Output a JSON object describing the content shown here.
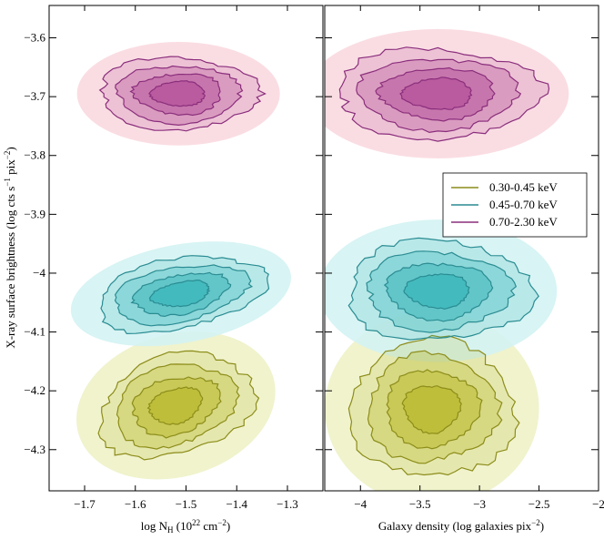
{
  "chart_data": [
    {
      "type": "contour",
      "panel": "left",
      "xlabel": "log N",
      "xlabel_sub": "H",
      "xlabel_units": "(10",
      "xlabel_units_exp": "22",
      "xlabel_units_tail": " cm",
      "xlabel_units_exp2": "−2",
      "xlabel_units_close": ")",
      "ylabel": "X-ray surface brightness (log cts s",
      "ylabel_exp1": "−1",
      "ylabel_mid": " pix",
      "ylabel_exp2": "−2",
      "ylabel_close": ")",
      "xlim": [
        -1.77,
        -1.23
      ],
      "ylim": [
        -4.37,
        -3.545
      ],
      "xticks": [
        -1.7,
        -1.6,
        -1.5,
        -1.4,
        -1.3
      ],
      "xtick_labels": [
        "−1.7",
        "−1.6",
        "−1.5",
        "−1.4",
        "−1.3"
      ],
      "yticks": [
        -3.6,
        -3.7,
        -3.8,
        -3.9,
        -4.0,
        -4.1,
        -4.2,
        -4.3
      ],
      "ytick_labels": [
        "−3.6",
        "−3.7",
        "−3.8",
        "−3.9",
        "−4",
        "−4.1",
        "−4.2",
        "−4.3"
      ],
      "series": [
        {
          "name": "0.30-0.45 keV",
          "center": [
            -1.52,
            -4.225
          ],
          "spread": [
            0.1,
            0.055
          ],
          "tilt": -0.28,
          "levels": [
            1.0,
            0.78,
            0.56,
            0.34
          ]
        },
        {
          "name": "0.45-0.70 keV",
          "center": [
            -1.51,
            -4.035
          ],
          "spread": [
            0.11,
            0.038
          ],
          "tilt": -0.18,
          "levels": [
            1.0,
            0.78,
            0.56,
            0.34
          ]
        },
        {
          "name": "0.70-2.30 keV",
          "center": [
            -1.515,
            -3.695
          ],
          "spread": [
            0.1,
            0.04
          ],
          "tilt": 0.0,
          "levels": [
            1.0,
            0.78,
            0.56,
            0.34
          ]
        }
      ]
    },
    {
      "type": "contour",
      "panel": "right",
      "xlabel": "Galaxy density (log galaxies pix",
      "xlabel_exp": "−2",
      "xlabel_close": ")",
      "xlim": [
        -4.3,
        -2.0
      ],
      "ylim": [
        -4.37,
        -3.545
      ],
      "xticks": [
        -4.0,
        -3.5,
        -3.0,
        -2.5,
        -2.0
      ],
      "xtick_labels": [
        "−4",
        "−3.5",
        "−3",
        "−2.5",
        "−2"
      ],
      "series": [
        {
          "name": "0.30-0.45 keV",
          "center": [
            -3.4,
            -4.23
          ],
          "spread": [
            0.45,
            0.075
          ],
          "tilt": 0.0,
          "levels": [
            1.0,
            0.78,
            0.56,
            0.34
          ]
        },
        {
          "name": "0.45-0.70 keV",
          "center": [
            -3.35,
            -4.03
          ],
          "spread": [
            0.5,
            0.055
          ],
          "tilt": 0.0,
          "levels": [
            1.0,
            0.78,
            0.56,
            0.34
          ]
        },
        {
          "name": "0.70-2.30 keV",
          "center": [
            -3.35,
            -3.695
          ],
          "spread": [
            0.55,
            0.05
          ],
          "tilt": 0.0,
          "levels": [
            1.0,
            0.78,
            0.56,
            0.34
          ]
        }
      ],
      "legend": {
        "placement": "center-right",
        "entries": [
          "0.30-0.45 keV",
          "0.45-0.70 keV",
          "0.70-2.30 keV"
        ]
      }
    }
  ],
  "colors": {
    "0.30-0.45 keV": {
      "line": "#8c8c1a",
      "fill": "#b8b826",
      "haze": "#eef2c6"
    },
    "0.45-0.70 keV": {
      "line": "#2a8c92",
      "fill": "#2fb3b8",
      "haze": "#d4f3f3"
    },
    "0.70-2.30 keV": {
      "line": "#8a2e7c",
      "fill": "#b04a96",
      "haze": "#f9d9e0"
    }
  }
}
